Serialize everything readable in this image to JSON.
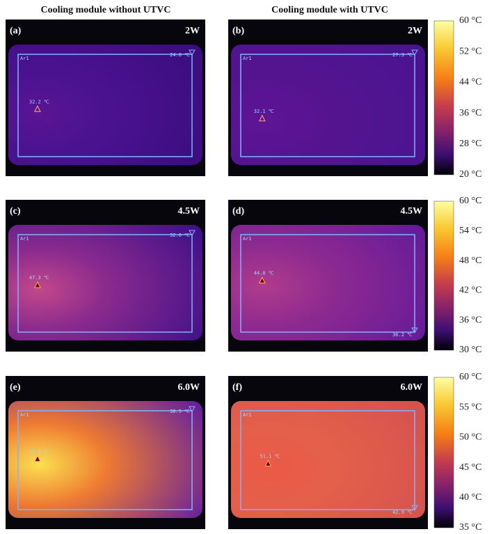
{
  "column_titles": [
    "Cooling module without UTVC",
    "Cooling module with UTVC"
  ],
  "panels": [
    {
      "label": "(a)",
      "power": "2W",
      "roi": "Ar1",
      "max_label": "32.2 ℃",
      "min_label": "24.6 ℃"
    },
    {
      "label": "(b)",
      "power": "2W",
      "roi": "Ar1",
      "max_label": "32.1 ℃",
      "min_label": "27.3 ℃"
    },
    {
      "label": "(c)",
      "power": "4.5W",
      "roi": "Ar1",
      "max_label": "47.3 ℃",
      "min_label": "32.6 ℃"
    },
    {
      "label": "(d)",
      "power": "4.5W",
      "roi": "Ar1",
      "max_label": "44.0 ℃",
      "min_label": "36.2 ℃"
    },
    {
      "label": "(e)",
      "power": "6.0W",
      "roi": "Ar1",
      "max_label": "55.8 ℃",
      "min_label": "38.5 ℃"
    },
    {
      "label": "(f)",
      "power": "6.0W",
      "roi": "Ar1",
      "max_label": "51.1 ℃",
      "min_label": "42.9 ℃"
    }
  ],
  "colorbars": [
    {
      "ticks": [
        "60 °C",
        "52 °C",
        "44 °C",
        "36 °C",
        "28 °C",
        "20 °C"
      ]
    },
    {
      "ticks": [
        "60 °C",
        "54 °C",
        "48 °C",
        "42 °C",
        "36 °C",
        "30 °C"
      ]
    },
    {
      "ticks": [
        "60 °C",
        "55 °C",
        "50 °C",
        "45 °C",
        "40 °C",
        "35 °C"
      ]
    }
  ]
}
